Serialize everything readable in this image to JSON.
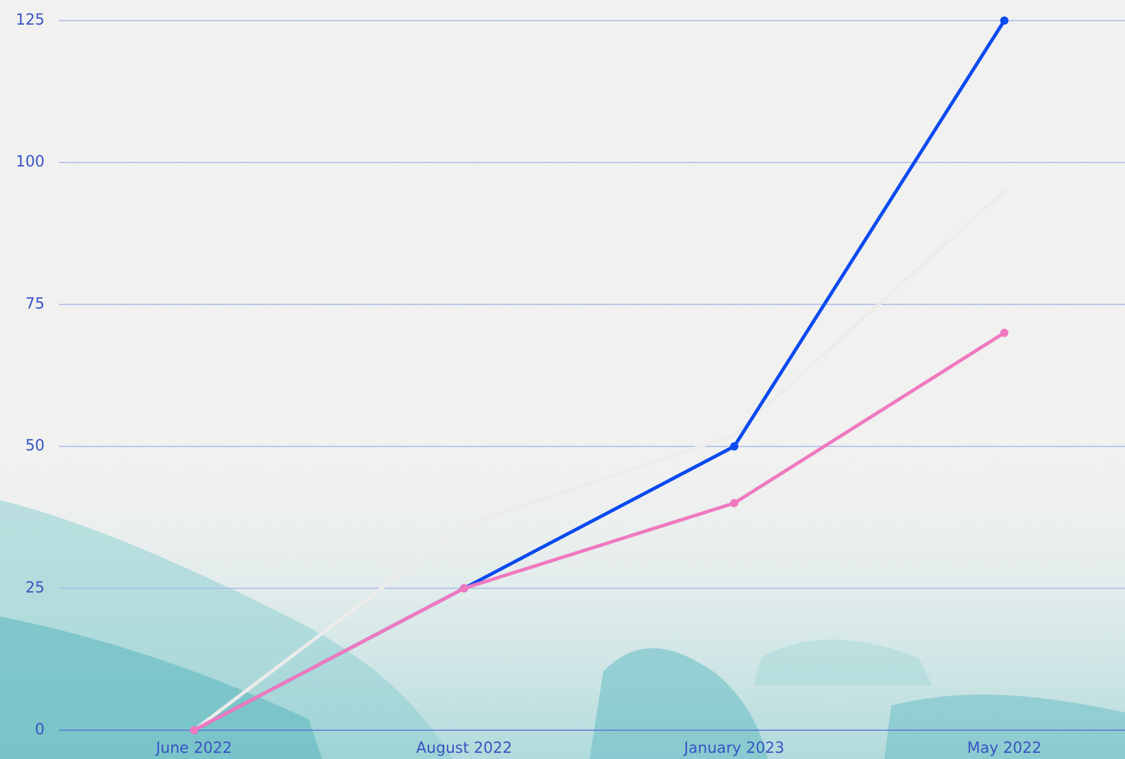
{
  "chart_data": {
    "type": "line",
    "categories": [
      "June 2022",
      "August 2022",
      "January 2023",
      "May 2022"
    ],
    "series": [
      {
        "color": "#ececea",
        "markers": false,
        "values": [
          0,
          36,
          52,
          95
        ]
      },
      {
        "color": "#0a4af0",
        "markers": true,
        "values": [
          0,
          25,
          50,
          125
        ]
      },
      {
        "color": "#ef79bf",
        "markers": true,
        "values": [
          0,
          25,
          40,
          70
        ]
      }
    ],
    "ylim": [
      0,
      125
    ],
    "yticks": [
      0,
      25,
      50,
      75,
      100,
      125
    ],
    "grid": true
  }
}
